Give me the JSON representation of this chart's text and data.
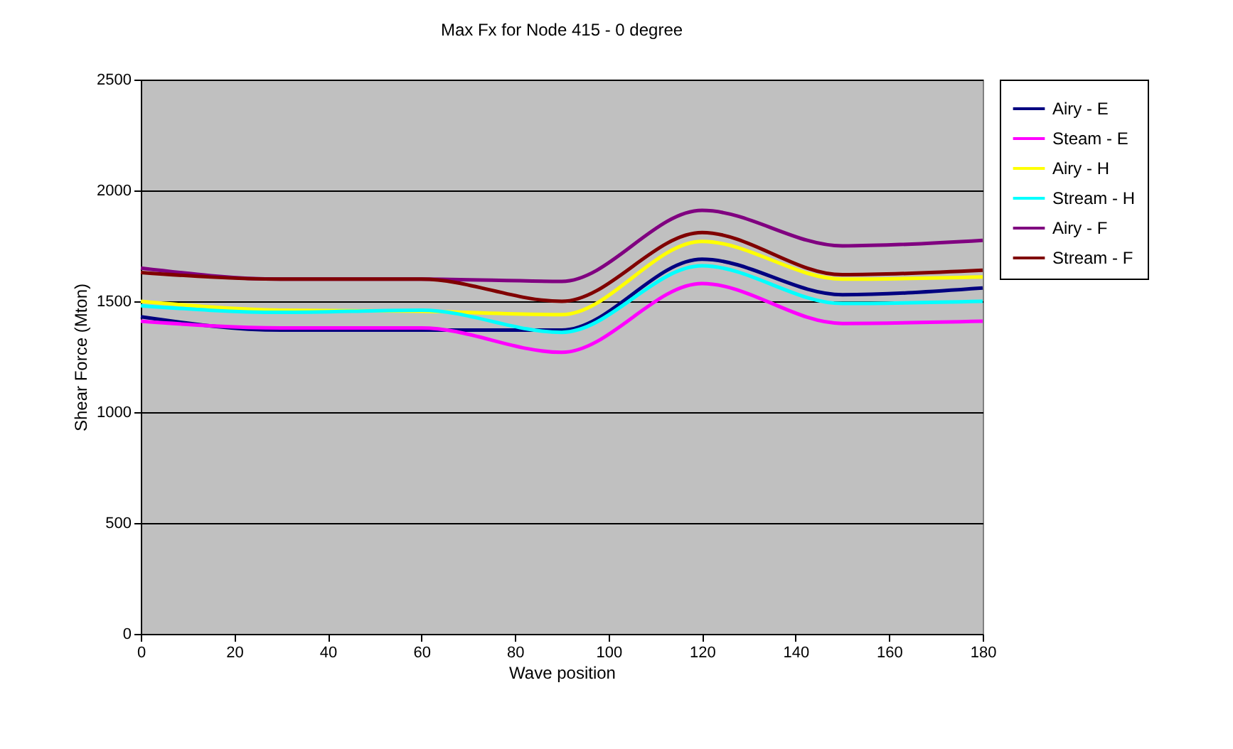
{
  "chart_data": {
    "type": "line",
    "title": "Max Fx for Node 415 - 0 degree",
    "xlabel": "Wave position",
    "ylabel": "Shear Force (Mton)",
    "x": [
      0,
      30,
      60,
      90,
      120,
      150,
      180
    ],
    "series": [
      {
        "name": "Airy - E",
        "color": "#000080",
        "values": [
          1430,
          1370,
          1370,
          1370,
          1690,
          1530,
          1560
        ]
      },
      {
        "name": "Steam - E",
        "color": "#ff00ff",
        "values": [
          1410,
          1380,
          1380,
          1270,
          1580,
          1400,
          1410
        ]
      },
      {
        "name": "Airy - H",
        "color": "#ffff00",
        "values": [
          1500,
          1460,
          1455,
          1440,
          1770,
          1600,
          1610
        ]
      },
      {
        "name": "Stream - H",
        "color": "#00ffff",
        "values": [
          1480,
          1450,
          1460,
          1360,
          1660,
          1490,
          1500
        ]
      },
      {
        "name": "Airy - F",
        "color": "#800080",
        "values": [
          1650,
          1600,
          1600,
          1590,
          1910,
          1750,
          1775
        ]
      },
      {
        "name": "Stream - F",
        "color": "#800000",
        "values": [
          1630,
          1600,
          1600,
          1500,
          1810,
          1620,
          1640
        ]
      }
    ],
    "xlim": [
      0,
      180
    ],
    "xticks": [
      0,
      20,
      40,
      60,
      80,
      100,
      120,
      140,
      160,
      180
    ],
    "ylim": [
      0,
      2500
    ],
    "yticks": [
      0,
      500,
      1000,
      1500,
      2000,
      2500
    ],
    "grid": "y",
    "legend": "right",
    "marker": "none",
    "line_style": "solid"
  }
}
